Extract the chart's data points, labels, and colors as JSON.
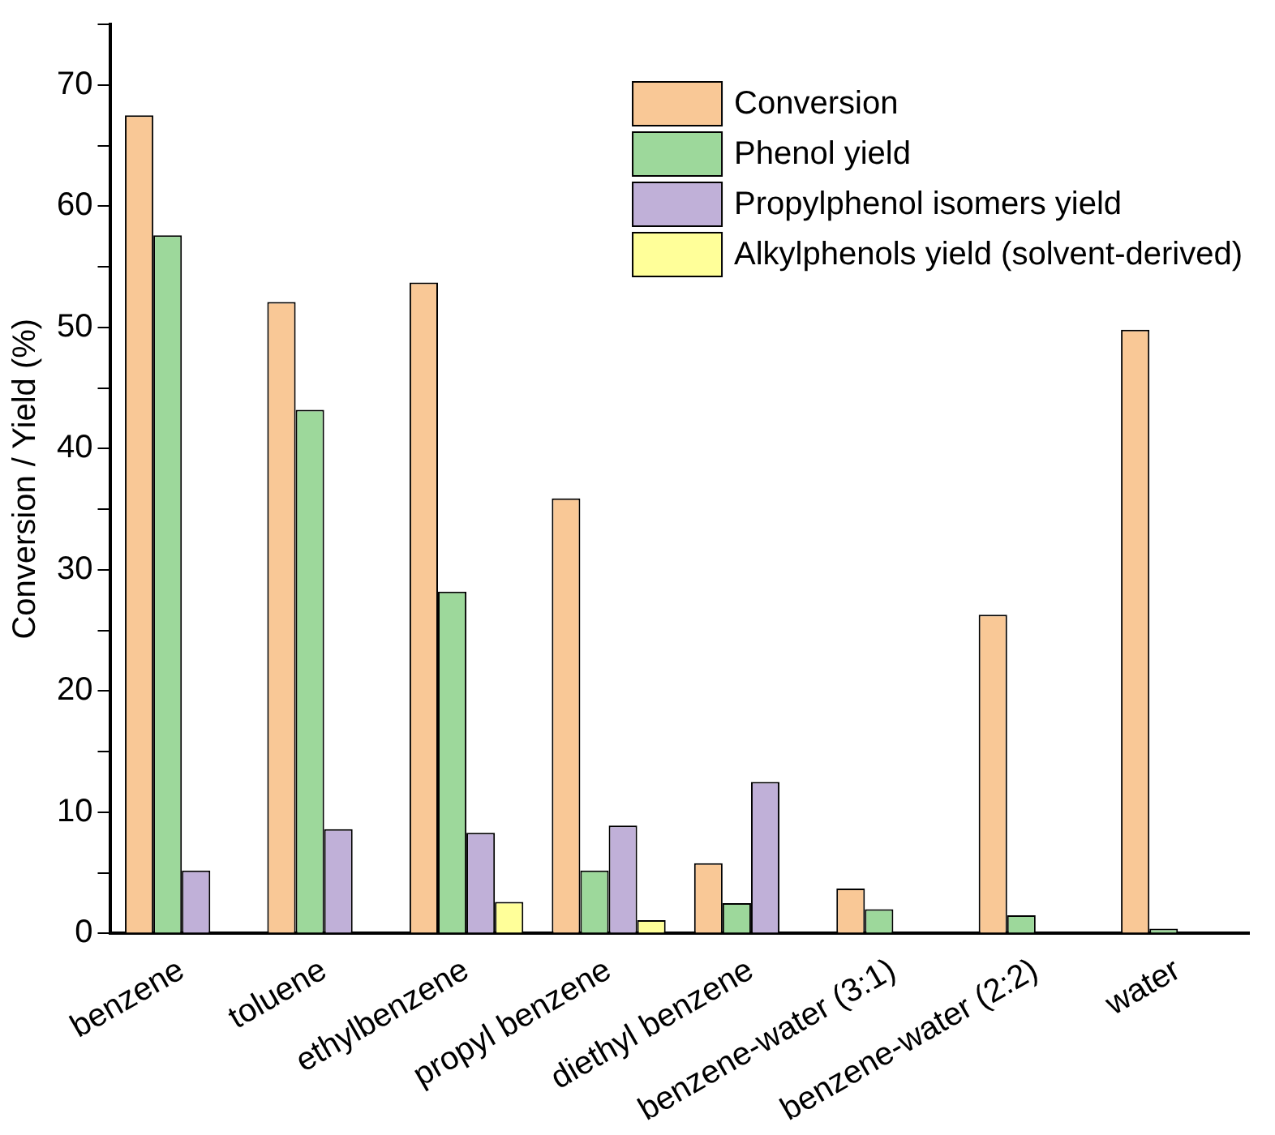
{
  "chart_data": {
    "type": "bar",
    "ylabel": "Conversion / Yield (%)",
    "categories": [
      "benzene",
      "toluene",
      "ethylbenzene",
      "propyl benzene",
      "diethyl benzene",
      "benzene-water (3:1)",
      "benzene-water (2:2)",
      "water"
    ],
    "series": [
      {
        "name": "Conversion",
        "color": "#f9c896",
        "values": [
          67.5,
          52.1,
          53.7,
          35.9,
          5.8,
          3.7,
          26.3,
          49.8
        ]
      },
      {
        "name": "Phenol yield",
        "color": "#9dd89b",
        "values": [
          57.6,
          43.2,
          28.2,
          5.2,
          2.5,
          2.0,
          1.5,
          0.4
        ]
      },
      {
        "name": "Propylphenol isomers yield",
        "color": "#c0b0d8",
        "values": [
          5.2,
          8.6,
          8.3,
          8.9,
          12.5,
          null,
          null,
          null
        ]
      },
      {
        "name": "Alkylphenols yield (solvent-derived)",
        "color": "#ffff99",
        "values": [
          null,
          null,
          2.6,
          1.1,
          null,
          null,
          null,
          null
        ]
      }
    ],
    "ylim": [
      0,
      75
    ],
    "yticks": [
      0,
      {
        "value": 5,
        "label": null
      },
      10,
      {
        "value": 15,
        "label": null
      },
      20,
      {
        "value": 25,
        "label": null
      },
      30,
      {
        "value": 35,
        "label": null
      },
      40,
      {
        "value": 45,
        "label": null
      },
      50,
      {
        "value": 55,
        "label": null
      },
      60,
      {
        "value": 65,
        "label": null
      },
      70,
      {
        "value": 75,
        "label": null
      }
    ],
    "grid": false,
    "legend": "top right"
  }
}
